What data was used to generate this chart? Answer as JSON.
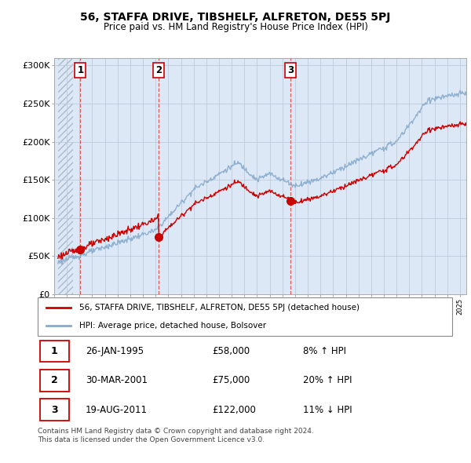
{
  "title": "56, STAFFA DRIVE, TIBSHELF, ALFRETON, DE55 5PJ",
  "subtitle": "Price paid vs. HM Land Registry's House Price Index (HPI)",
  "ylabel_ticks": [
    "£0",
    "£50K",
    "£100K",
    "£150K",
    "£200K",
    "£250K",
    "£300K"
  ],
  "ytick_values": [
    0,
    50000,
    100000,
    150000,
    200000,
    250000,
    300000
  ],
  "ylim": [
    0,
    310000
  ],
  "xlim_start": 1993.3,
  "xlim_end": 2025.5,
  "transactions": [
    {
      "date": 1995.07,
      "price": 58000,
      "label": "1"
    },
    {
      "date": 2001.25,
      "price": 75000,
      "label": "2"
    },
    {
      "date": 2011.63,
      "price": 122000,
      "label": "3"
    }
  ],
  "transaction_color": "#cc0000",
  "hpi_color": "#88aacc",
  "legend_entries": [
    "56, STAFFA DRIVE, TIBSHELF, ALFRETON, DE55 5PJ (detached house)",
    "HPI: Average price, detached house, Bolsover"
  ],
  "table_rows": [
    {
      "num": "1",
      "date": "26-JAN-1995",
      "price": "£58,000",
      "hpi": "8% ↑ HPI"
    },
    {
      "num": "2",
      "date": "30-MAR-2001",
      "price": "£75,000",
      "hpi": "20% ↑ HPI"
    },
    {
      "num": "3",
      "date": "19-AUG-2011",
      "price": "£122,000",
      "hpi": "11% ↓ HPI"
    }
  ],
  "footer": "Contains HM Land Registry data © Crown copyright and database right 2024.\nThis data is licensed under the Open Government Licence v3.0.",
  "grid_color": "#bbccdd",
  "hatch_strip_end": 1994.5
}
